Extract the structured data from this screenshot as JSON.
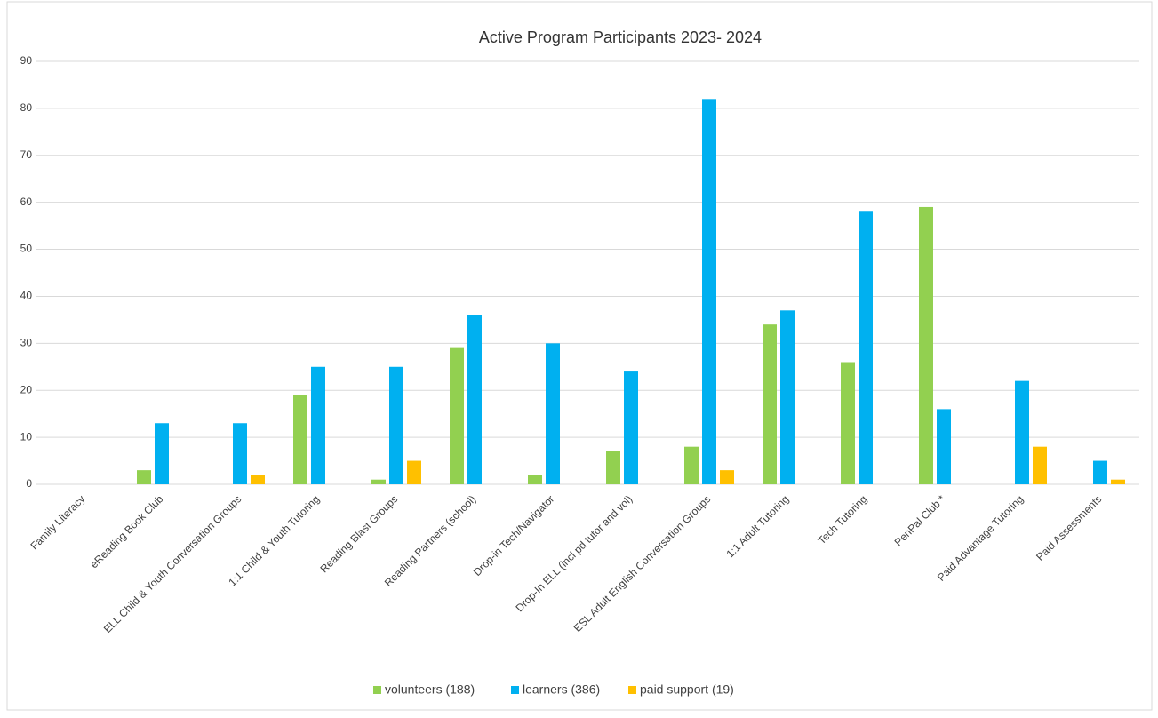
{
  "chart_data": {
    "type": "bar",
    "title": "Active Program Participants 2023- 2024",
    "categories": [
      "Family Literacy",
      "eReading Book Club",
      "ELL Child & Youth Conversation Groups",
      "1:1 Child & Youth Tutoring",
      "Reading Blast Groups",
      "Reading Partners (school)",
      "Drop-in Tech/Navigator",
      "Drop-In ELL (incl pd tutor and vol)",
      "ESL Adult English Conversation Groups",
      "1:1 Adult Tutoring",
      "Tech Tutoring",
      "PenPal Club *",
      "Paid Advantage Tutoring",
      "Paid Assessments"
    ],
    "series": [
      {
        "name": "volunteers (188)",
        "color": "#92d050",
        "values": [
          0,
          3,
          0,
          19,
          1,
          29,
          2,
          7,
          8,
          34,
          26,
          59,
          0,
          0
        ]
      },
      {
        "name": "learners (386)",
        "color": "#00b0f0",
        "values": [
          0,
          13,
          13,
          25,
          25,
          36,
          30,
          24,
          82,
          37,
          58,
          16,
          22,
          5
        ]
      },
      {
        "name": "paid support (19)",
        "color": "#ffc000",
        "values": [
          0,
          0,
          2,
          0,
          5,
          0,
          0,
          0,
          3,
          0,
          0,
          0,
          8,
          1
        ]
      }
    ],
    "ylim": [
      0,
      90
    ],
    "yticks": [
      0,
      10,
      20,
      30,
      40,
      50,
      60,
      70,
      80,
      90
    ],
    "grid": true,
    "legend": "bottom"
  }
}
